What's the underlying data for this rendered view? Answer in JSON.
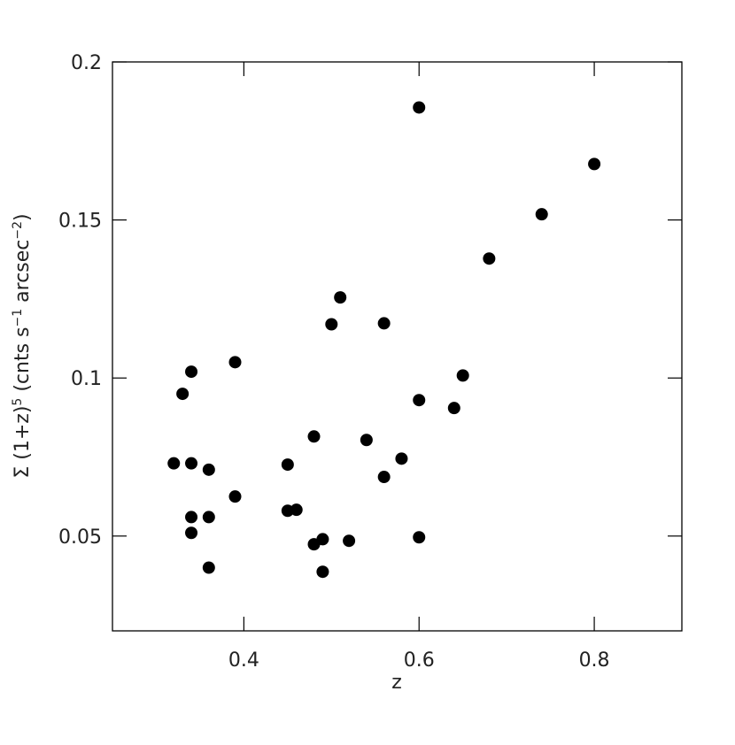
{
  "chart_data": {
    "type": "scatter",
    "xlabel": "z",
    "ylabel": [
      "Σ (1+z)",
      "5",
      " (cnts s",
      "−1",
      " arcsec",
      "−2",
      ")"
    ],
    "xlim": [
      0.25,
      0.9
    ],
    "xticks": [
      0.4,
      0.6,
      0.8
    ],
    "ylim": [
      0.02,
      0.2
    ],
    "yticks": [
      0.05,
      0.1,
      0.15,
      0.2
    ],
    "color": "#000000",
    "series": [
      {
        "name": null,
        "color": "#000000",
        "x": [
          0.32,
          0.33,
          0.34,
          0.34,
          0.34,
          0.34,
          0.36,
          0.36,
          0.36,
          0.39,
          0.39,
          0.45,
          0.45,
          0.46,
          0.48,
          0.48,
          0.49,
          0.49,
          0.5,
          0.51,
          0.52,
          0.54,
          0.56,
          0.56,
          0.58,
          0.6,
          0.6,
          0.6,
          0.64,
          0.65,
          0.68,
          0.74,
          0.8
        ],
        "values": [
          0.073,
          0.095,
          0.102,
          0.073,
          0.056,
          0.051,
          0.071,
          0.056,
          0.04,
          0.105,
          0.0625,
          0.0726,
          0.058,
          0.0583,
          0.0815,
          0.0474,
          0.049,
          0.0387,
          0.117,
          0.1255,
          0.0485,
          0.0804,
          0.1173,
          0.0687,
          0.0745,
          0.1856,
          0.093,
          0.0496,
          0.0905,
          0.1008,
          0.1378,
          0.1518,
          0.1677
        ]
      }
    ]
  }
}
